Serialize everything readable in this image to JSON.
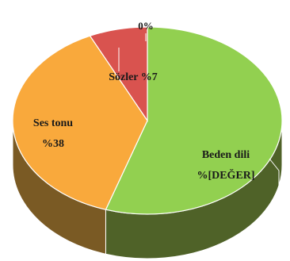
{
  "chart_data": {
    "type": "pie",
    "style": "3d",
    "title": "",
    "slices": [
      {
        "label_name": "Beden dili",
        "label_value": "%[DEĞER]",
        "value": 55,
        "color": "#92d050",
        "side_color": "#4f6228"
      },
      {
        "label_name": "Ses tonu",
        "label_value": "%38",
        "value": 38,
        "color": "#f9a93c",
        "side_color": "#7a5a24"
      },
      {
        "label_name": "Sözler",
        "label_value": "%7",
        "value": 7,
        "color": "#d9534f",
        "side_color": "#8a3a2e"
      },
      {
        "label_name": "",
        "label_value": "0%",
        "value": 0,
        "color": "#c0c0c0",
        "side_color": "#808080"
      }
    ],
    "legend": "none",
    "start_angle": "top",
    "direction": "clockwise"
  },
  "labels": {
    "beden_name": "Beden dili",
    "beden_value": "%[DEĞER]",
    "ses_name": "Ses tonu",
    "ses_value": "%38",
    "sozler": "Sözler %7",
    "zero": "0%"
  }
}
